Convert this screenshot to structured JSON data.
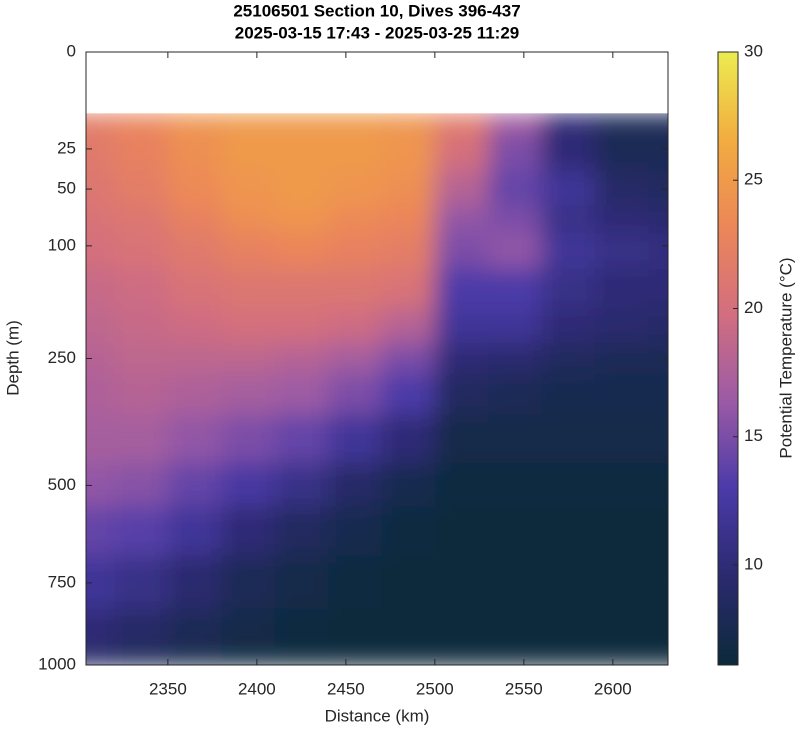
{
  "chart_data": {
    "type": "contour",
    "title": "25106501 Section 10, Dives 396-437",
    "subtitle": "2025-03-15 17:43 - 2025-03-25 11:29",
    "xlabel": "Distance (km)",
    "ylabel": "Depth (m)",
    "colorbar_label": "Potential Temperature (°C)",
    "x": [
      2305,
      2335,
      2365,
      2395,
      2425,
      2455,
      2485,
      2515,
      2545,
      2575,
      2605,
      2635
    ],
    "y": [
      10,
      25,
      50,
      75,
      100,
      150,
      200,
      250,
      300,
      400,
      500,
      600,
      750,
      900,
      1000
    ],
    "z": [
      [
        22,
        23,
        24.5,
        25,
        25,
        25,
        24.5,
        22,
        17,
        10,
        8,
        8
      ],
      [
        21.5,
        22.5,
        24,
        25,
        25,
        25,
        24.5,
        20,
        15,
        10,
        8,
        8
      ],
      [
        21,
        22,
        23.5,
        24.5,
        25,
        24.5,
        24,
        18,
        14,
        12,
        9,
        8.5
      ],
      [
        20.5,
        21,
        22.5,
        24,
        24.5,
        23.5,
        23,
        16,
        15,
        11,
        10,
        9.5
      ],
      [
        20,
        20.5,
        21.5,
        22.5,
        23,
        22.5,
        22,
        15,
        16,
        12,
        11,
        10.5
      ],
      [
        19,
        19.5,
        20.5,
        21,
        21,
        21,
        20.5,
        13,
        13,
        11,
        10,
        10
      ],
      [
        18.5,
        19,
        19.5,
        20,
        20,
        19.5,
        18,
        12,
        12,
        10,
        9.5,
        9
      ],
      [
        18,
        18.5,
        18.5,
        18.5,
        18,
        17,
        15,
        10,
        9.5,
        8.5,
        8,
        8
      ],
      [
        17.5,
        18,
        17.5,
        17,
        16.5,
        15,
        13,
        8.5,
        8,
        7.5,
        7.5,
        7.5
      ],
      [
        17,
        17,
        16,
        15,
        14,
        12,
        10,
        7,
        7,
        7,
        7,
        7
      ],
      [
        16,
        15.5,
        14,
        12.5,
        11,
        9,
        7.5,
        6.5,
        6.5,
        6.5,
        6.5,
        6.5
      ],
      [
        14,
        13.5,
        12,
        10,
        8.5,
        7.5,
        6.5,
        6.3,
        6.3,
        6.3,
        6.3,
        6.3
      ],
      [
        12,
        11,
        9.5,
        8,
        7,
        6.5,
        6.3,
        6.2,
        6.2,
        6.2,
        6.2,
        6.2
      ],
      [
        10,
        9,
        8,
        7,
        6.5,
        6.3,
        6.2,
        6.2,
        6.2,
        6.2,
        6.2,
        6.2
      ],
      [
        9,
        8,
        7,
        6.5,
        6.3,
        6.2,
        6.2,
        6.2,
        6.2,
        6.2,
        6.2,
        6.2
      ]
    ],
    "xlim": [
      2304,
      2631
    ],
    "xticks": [
      2350,
      2400,
      2450,
      2500,
      2550,
      2600
    ],
    "ylim": [
      0,
      1000
    ],
    "yticks": [
      0,
      25,
      50,
      100,
      250,
      500,
      750,
      1000
    ],
    "yscale": "sqrt",
    "yreverse": true,
    "clim": [
      6.1,
      30
    ],
    "cticks": [
      10,
      15,
      20,
      25,
      30
    ],
    "colormap": [
      "#0c2a3a",
      "#2a2a6e",
      "#4a3aa8",
      "#9a5aa6",
      "#d26e80",
      "#ec8658",
      "#f2ac40",
      "#ecec50"
    ]
  }
}
